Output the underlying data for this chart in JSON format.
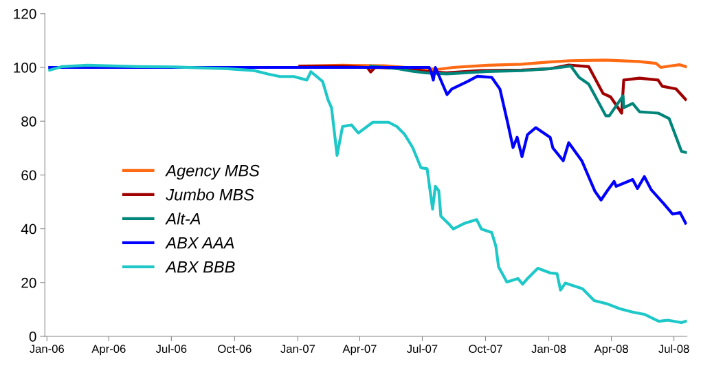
{
  "chart_data": {
    "type": "line",
    "xlim": [
      "2005-12-29",
      "2008-07-20"
    ],
    "ylim": [
      0,
      120
    ],
    "yticks": [
      0,
      20,
      40,
      60,
      80,
      100,
      120
    ],
    "xticks": [
      {
        "value": "2006-01-01",
        "label": "Jan-06"
      },
      {
        "value": "2006-04-01",
        "label": "Apr-06"
      },
      {
        "value": "2006-07-01",
        "label": "Jul-06"
      },
      {
        "value": "2006-10-01",
        "label": "Oct-06"
      },
      {
        "value": "2007-01-01",
        "label": "Jan-07"
      },
      {
        "value": "2007-04-01",
        "label": "Apr-07"
      },
      {
        "value": "2007-07-01",
        "label": "Jul-07"
      },
      {
        "value": "2007-10-01",
        "label": "Oct-07"
      },
      {
        "value": "2008-01-01",
        "label": "Jan-08"
      },
      {
        "value": "2008-04-01",
        "label": "Apr-08"
      },
      {
        "value": "2008-07-01",
        "label": "Jul-08"
      }
    ],
    "grid": false,
    "legend": "left",
    "marker": "none",
    "line_style": "solid",
    "series": [
      {
        "name": "Agency MBS",
        "color": "#ff6a13",
        "x": [
          "2007-01-04",
          "2007-03-08",
          "2007-05-07",
          "2007-06-16",
          "2007-07-25",
          "2007-08-15",
          "2007-10-04",
          "2007-11-23",
          "2008-01-02",
          "2008-02-01",
          "2008-03-23",
          "2008-05-10",
          "2008-06-05",
          "2008-06-12",
          "2008-06-25",
          "2008-07-09",
          "2008-07-18"
        ],
        "values": [
          100.5,
          100.8,
          100.6,
          99.8,
          99.3,
          100.0,
          100.8,
          101.2,
          102.0,
          102.5,
          102.7,
          102.2,
          101.5,
          100.0,
          100.5,
          101.0,
          100.3
        ]
      },
      {
        "name": "Jumbo MBS",
        "color": "#a00000",
        "x": [
          "2007-01-04",
          "2007-03-08",
          "2007-04-12",
          "2007-04-17",
          "2007-04-23",
          "2007-06-16",
          "2007-07-06",
          "2007-08-05",
          "2007-09-24",
          "2007-11-23",
          "2008-01-02",
          "2008-01-30",
          "2008-02-28",
          "2008-03-20",
          "2008-03-31",
          "2008-04-16",
          "2008-04-19",
          "2008-05-12",
          "2008-06-08",
          "2008-06-14",
          "2008-07-04",
          "2008-07-18"
        ],
        "values": [
          100.5,
          100.5,
          100.0,
          98.3,
          100.0,
          99.5,
          98.5,
          98.0,
          98.8,
          99.0,
          99.5,
          100.9,
          100.3,
          90.3,
          89.0,
          83.0,
          95.3,
          96.0,
          95.3,
          93.0,
          92.0,
          88.1
        ]
      },
      {
        "name": "Alt-A",
        "color": "#00857a",
        "x": [
          "2007-04-17",
          "2007-05-27",
          "2007-06-16",
          "2007-07-06",
          "2007-08-06",
          "2007-10-04",
          "2007-11-23",
          "2008-01-02",
          "2008-02-02",
          "2008-02-14",
          "2008-02-28",
          "2008-03-24",
          "2008-03-29",
          "2008-04-18",
          "2008-04-19",
          "2008-05-02",
          "2008-05-12",
          "2008-06-08",
          "2008-06-24",
          "2008-07-12",
          "2008-07-18"
        ],
        "values": [
          100.5,
          99.5,
          98.6,
          98.0,
          97.6,
          98.5,
          98.8,
          99.5,
          100.5,
          96.3,
          93.8,
          82.0,
          82.0,
          89.4,
          85.0,
          86.6,
          83.5,
          83.0,
          81.0,
          68.8,
          68.4
        ]
      },
      {
        "name": "ABX AAA",
        "color": "#0000ff",
        "x": [
          "2006-01-05",
          "2006-08-21",
          "2007-07-11",
          "2007-07-14",
          "2007-07-17",
          "2007-07-20",
          "2007-08-06",
          "2007-08-13",
          "2007-09-05",
          "2007-09-19",
          "2007-10-10",
          "2007-10-22",
          "2007-11-02",
          "2007-11-10",
          "2007-11-16",
          "2007-11-23",
          "2007-12-01",
          "2007-12-13",
          "2008-01-03",
          "2008-01-07",
          "2008-01-22",
          "2008-01-30",
          "2008-02-18",
          "2008-03-08",
          "2008-03-17",
          "2008-03-26",
          "2008-04-05",
          "2008-04-08",
          "2008-05-02",
          "2008-05-09",
          "2008-05-19",
          "2008-05-29",
          "2008-06-16",
          "2008-06-29",
          "2008-07-10",
          "2008-07-18"
        ],
        "values": [
          100.0,
          100.0,
          100.0,
          98.2,
          95.3,
          100.0,
          89.9,
          92.0,
          94.8,
          96.7,
          96.3,
          91.9,
          79.6,
          70.2,
          74.0,
          66.8,
          75.0,
          77.6,
          74.0,
          70.0,
          65.3,
          72.0,
          65.3,
          54.0,
          50.7,
          54.1,
          57.6,
          55.8,
          58.3,
          55.0,
          59.4,
          54.5,
          49.4,
          45.5,
          46.0,
          42.1
        ]
      },
      {
        "name": "ABX BBB",
        "color": "#1fc8c8",
        "x": [
          "2006-01-05",
          "2006-01-23",
          "2006-03-01",
          "2006-05-13",
          "2006-07-02",
          "2006-09-20",
          "2006-10-30",
          "2006-11-19",
          "2006-12-06",
          "2006-12-26",
          "2007-01-14",
          "2007-01-20",
          "2007-02-06",
          "2007-02-14",
          "2007-02-19",
          "2007-02-27",
          "2007-03-07",
          "2007-03-20",
          "2007-03-30",
          "2007-04-20",
          "2007-05-13",
          "2007-05-25",
          "2007-06-05",
          "2007-06-17",
          "2007-06-29",
          "2007-07-08",
          "2007-07-16",
          "2007-07-20",
          "2007-07-25",
          "2007-07-28",
          "2007-08-09",
          "2007-08-15",
          "2007-09-01",
          "2007-09-18",
          "2007-09-25",
          "2007-10-10",
          "2007-10-16",
          "2007-10-20",
          "2007-11-01",
          "2007-11-17",
          "2007-11-24",
          "2007-12-01",
          "2007-12-16",
          "2008-01-03",
          "2008-01-13",
          "2008-01-18",
          "2008-01-25",
          "2008-02-19",
          "2008-03-07",
          "2008-03-27",
          "2008-04-13",
          "2008-05-02",
          "2008-05-19",
          "2008-06-09",
          "2008-06-22",
          "2008-07-12",
          "2008-07-18"
        ],
        "values": [
          99.0,
          100.3,
          100.8,
          100.3,
          100.2,
          99.5,
          98.8,
          97.5,
          96.6,
          96.6,
          95.3,
          98.4,
          94.8,
          87.9,
          85.0,
          67.3,
          78.0,
          78.6,
          75.6,
          79.6,
          79.6,
          78.0,
          75.2,
          70.2,
          62.7,
          62.3,
          47.3,
          55.8,
          54.1,
          44.7,
          41.7,
          39.9,
          42.1,
          43.4,
          39.9,
          38.6,
          33.5,
          25.8,
          20.2,
          21.5,
          19.4,
          21.5,
          25.3,
          23.6,
          23.3,
          17.2,
          19.8,
          17.7,
          13.3,
          12.0,
          10.3,
          9.0,
          8.2,
          5.6,
          6.0,
          5.1,
          5.6
        ]
      }
    ]
  }
}
